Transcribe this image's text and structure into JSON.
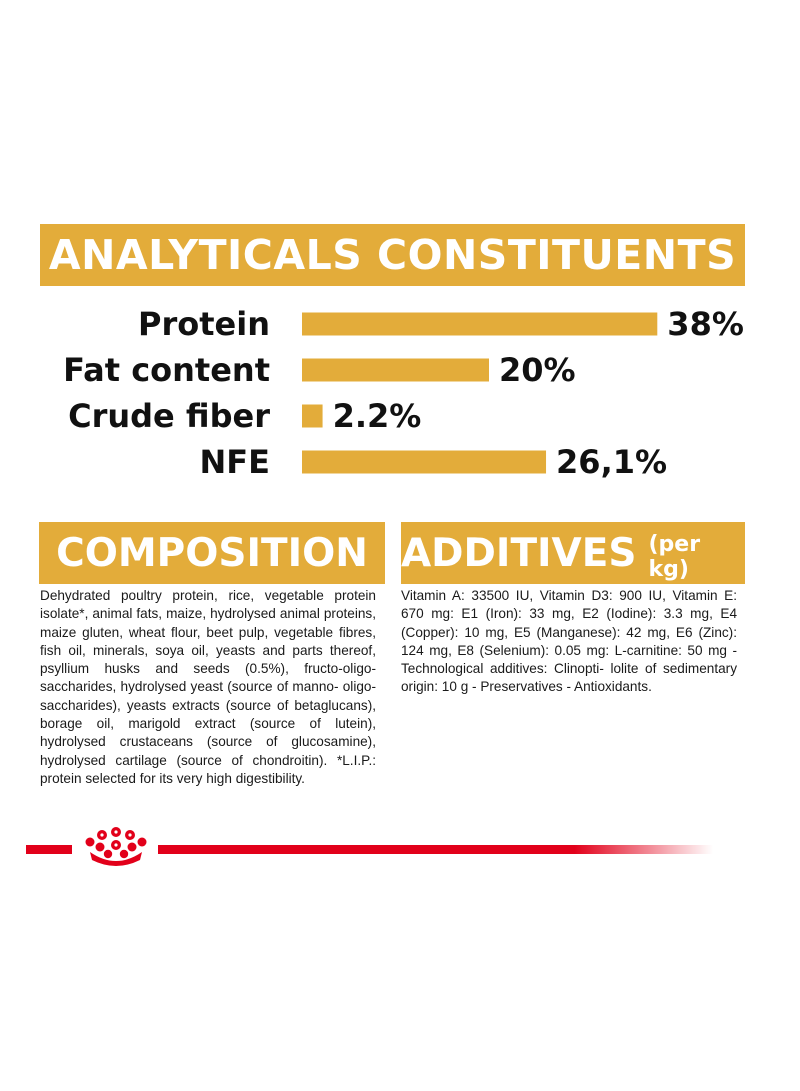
{
  "analytics": {
    "title": "ANALYTICALS CONSTITUENTS"
  },
  "chart_data": {
    "type": "bar",
    "orientation": "horizontal",
    "categories": [
      "Protein",
      "Fat content",
      "Crude fiber",
      "NFE"
    ],
    "values": [
      38,
      20,
      2.2,
      26.1
    ],
    "value_labels": [
      "38%",
      "20%",
      "2.2%",
      "26,1%"
    ],
    "unit": "%",
    "bar_color": "#e3ac3a",
    "grid": false,
    "legend": "none"
  },
  "composition": {
    "title": "COMPOSITION",
    "text": "Dehydrated poultry protein, rice, vegetable protein isolate*, animal fats, maize, hydrolysed animal proteins, maize gluten, wheat flour, beet pulp, vegetable fibres, fish oil, minerals, soya oil, yeasts and parts thereof, psyllium husks and seeds (0.5%), fructo-oligo-saccharides, hydrolysed yeast (source of manno- oligo-saccharides), yeasts extracts (source of betaglucans), borage oil, marigold extract (source of lutein), hydrolysed crustaceans (source of glucosamine), hydrolysed cartilage (source of chondroitin). *L.I.P.: protein selected for its very high digestibility."
  },
  "additives": {
    "title": "ADDITIVES",
    "unit": "(per kg)",
    "text": "Vitamin A: 33500 IU, Vitamin D3: 900 IU, Vitamin E: 670 mg: E1 (Iron): 33 mg, E2 (Iodine): 3.3 mg, E4 (Copper): 10 mg, E5 (Manganese): 42 mg, E6 (Zinc): 124 mg, E8 (Selenium): 0.05 mg: L-carnitine: 50 mg - Technological additives: Clinopti- lolite of sedimentary origin: 10 g - Preservatives - Antioxidants."
  },
  "colors": {
    "accent": "#e3ac3a",
    "brand_red": "#e2001a"
  },
  "footer": {
    "logo_icon": "crown-icon"
  }
}
